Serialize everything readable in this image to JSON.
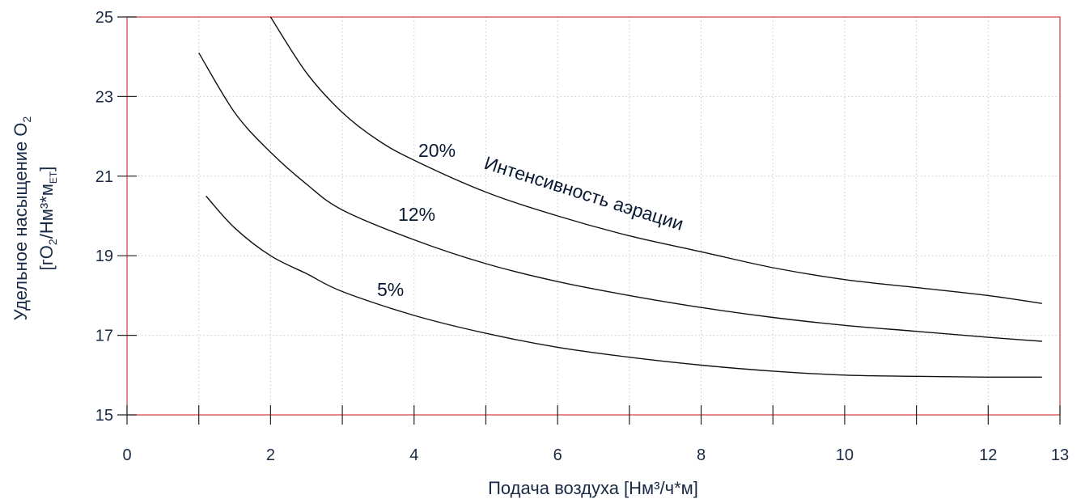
{
  "chart_data": {
    "type": "line",
    "title": "",
    "xlabel": "Подача воздуха [Нм³/ч*м]",
    "ylabel": {
      "line1_main": "Удельное насыщение O",
      "line1_sub": "2",
      "line2_part1": "[гO",
      "line2_sub1": "2",
      "line2_part2": "/Нм³*м",
      "line2_sub2": "ЕТ",
      "line2_part3": "]"
    },
    "xlim": [
      0,
      13
    ],
    "ylim": [
      15,
      25
    ],
    "x_ticks_major": [
      0,
      2,
      4,
      6,
      8,
      10,
      12,
      13
    ],
    "x_ticks_minor": [
      1,
      3,
      5,
      7,
      9,
      11
    ],
    "y_ticks": [
      15,
      17,
      19,
      21,
      23,
      25
    ],
    "grid": true,
    "series": [
      {
        "name": "20%",
        "points": [
          [
            2.0,
            25.0
          ],
          [
            2.5,
            23.6
          ],
          [
            3.0,
            22.6
          ],
          [
            3.5,
            21.9
          ],
          [
            4.0,
            21.4
          ],
          [
            5.0,
            20.6
          ],
          [
            6.0,
            20.0
          ],
          [
            7.0,
            19.5
          ],
          [
            8.0,
            19.1
          ],
          [
            9.0,
            18.7
          ],
          [
            10.0,
            18.4
          ],
          [
            11.0,
            18.2
          ],
          [
            12.0,
            18.0
          ],
          [
            12.75,
            17.8
          ]
        ]
      },
      {
        "name": "12%",
        "points": [
          [
            1.0,
            24.1
          ],
          [
            1.5,
            22.6
          ],
          [
            2.0,
            21.6
          ],
          [
            2.5,
            20.8
          ],
          [
            3.0,
            20.15
          ],
          [
            4.0,
            19.4
          ],
          [
            5.0,
            18.8
          ],
          [
            6.0,
            18.35
          ],
          [
            7.0,
            18.0
          ],
          [
            8.0,
            17.7
          ],
          [
            9.0,
            17.45
          ],
          [
            10.0,
            17.25
          ],
          [
            11.0,
            17.1
          ],
          [
            12.0,
            16.95
          ],
          [
            12.75,
            16.85
          ]
        ]
      },
      {
        "name": "5%",
        "points": [
          [
            1.1,
            20.5
          ],
          [
            1.5,
            19.7
          ],
          [
            2.0,
            19.0
          ],
          [
            2.5,
            18.55
          ],
          [
            3.0,
            18.1
          ],
          [
            4.0,
            17.5
          ],
          [
            5.0,
            17.05
          ],
          [
            6.0,
            16.7
          ],
          [
            7.0,
            16.45
          ],
          [
            8.0,
            16.25
          ],
          [
            9.0,
            16.1
          ],
          [
            10.0,
            16.0
          ],
          [
            11.0,
            15.97
          ],
          [
            12.0,
            15.95
          ],
          [
            12.75,
            15.95
          ]
        ]
      }
    ],
    "annotations": {
      "label_20": "20%",
      "label_12": "12%",
      "label_5": "5%",
      "rotated": "Интенсивность аэрации"
    }
  }
}
